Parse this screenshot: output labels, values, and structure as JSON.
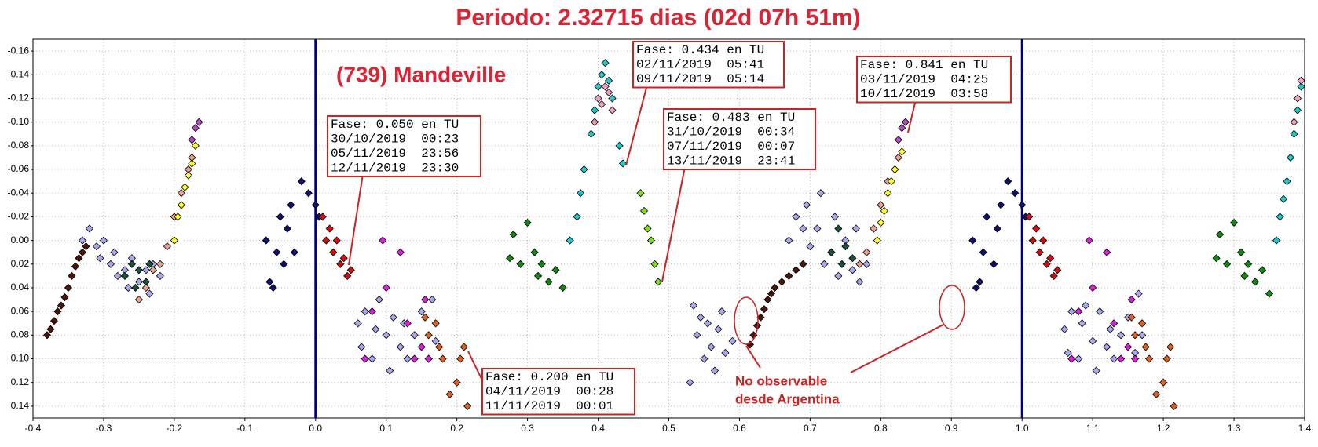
{
  "chart_data": {
    "type": "scatter",
    "title": "Periodo: 2.32715 dias (02d 07h 51m)",
    "label": "(739) Mandeville",
    "note": [
      "No observable",
      "desde Argentina"
    ],
    "xlim": [
      -0.4,
      1.4
    ],
    "ylim": [
      0.15,
      -0.17
    ],
    "xticks": [
      -0.4,
      -0.3,
      -0.2,
      -0.1,
      {
        "value": 0,
        "label": "0.0"
      },
      0.1,
      0.2,
      0.3,
      0.4,
      0.5,
      0.6,
      0.7,
      0.8,
      0.9,
      {
        "value": 1,
        "label": "1.0"
      },
      1.1,
      1.2,
      1.3,
      1.4
    ],
    "yticks": [
      -0.16,
      -0.14,
      -0.12,
      {
        "value": -0.1,
        "label": "-0.10"
      },
      -0.08,
      -0.06,
      -0.04,
      -0.02,
      {
        "value": 0,
        "label": "0.00"
      },
      0.02,
      0.04,
      0.06,
      0.08,
      {
        "value": 0.1,
        "label": "0.10"
      },
      0.12,
      0.14
    ],
    "grid": true,
    "vlines": [
      0,
      1
    ],
    "vline_color": "#000080",
    "annotations": [
      {
        "lines": [
          "Fase: 0.050 en TU",
          "30/10/2019  00:23",
          "05/11/2019  23:56",
          "12/11/2019  23:30"
        ]
      },
      {
        "lines": [
          "Fase: 0.434 en TU",
          "02/11/2019  05:41",
          "09/11/2019  05:14"
        ]
      },
      {
        "lines": [
          "Fase: 0.483 en TU",
          "31/10/2019  00:34",
          "07/11/2019  00:07",
          "13/11/2019  23:41"
        ]
      },
      {
        "lines": [
          "Fase: 0.841 en TU",
          "03/11/2019  04:25",
          "10/11/2019  03:58"
        ]
      },
      {
        "lines": [
          "Fase: 0.200 en TU",
          "04/11/2019  00:28",
          "11/11/2019  00:01"
        ]
      }
    ],
    "series": [
      {
        "color": "#4a1608",
        "x": [
          -0.38,
          -0.375,
          -0.37,
          -0.365,
          -0.36,
          -0.355,
          -0.35,
          -0.345,
          -0.34,
          -0.335,
          -0.33,
          -0.325,
          0.615,
          0.62,
          0.625,
          0.63,
          0.635,
          0.64,
          0.645,
          0.65,
          0.66,
          0.67,
          0.68,
          0.69
        ],
        "values": [
          0.08,
          0.075,
          0.068,
          0.06,
          0.055,
          0.048,
          0.04,
          0.03,
          0.022,
          0.015,
          0.01,
          0.005,
          0.088,
          0.08,
          0.072,
          0.065,
          0.058,
          0.05,
          0.045,
          0.04,
          0.035,
          0.03,
          0.025,
          0.02
        ]
      },
      {
        "color": "#a8a8ee",
        "x": [
          -0.33,
          -0.32,
          -0.31,
          -0.305,
          -0.3,
          -0.29,
          -0.285,
          -0.28,
          -0.27,
          -0.265,
          -0.26,
          -0.25,
          -0.24,
          -0.235,
          -0.23,
          -0.22,
          0.67,
          0.68,
          0.69,
          0.695,
          0.7,
          0.71,
          0.715,
          0.72,
          0.73,
          0.735,
          0.74,
          0.75,
          0.76,
          0.765,
          0.77,
          0.78,
          0.06,
          0.065,
          0.07,
          0.08,
          0.085,
          0.09,
          0.1,
          0.105,
          0.11,
          0.12,
          0.125,
          0.13,
          0.14,
          0.15,
          0.16,
          0.165,
          0.17,
          1.06,
          1.065,
          1.07,
          1.08,
          1.085,
          1.09,
          1.1,
          1.105,
          1.11,
          1.12,
          1.125,
          1.13,
          1.14,
          1.15,
          1.16,
          1.165,
          1.17,
          0.53,
          0.535,
          0.54,
          0.545,
          0.55,
          0.555,
          0.56,
          0.565,
          0.57,
          0.575,
          0.58,
          0.59
        ],
        "values": [
          0.0,
          -0.01,
          0.005,
          0.015,
          0.0,
          0.02,
          0.01,
          0.03,
          0.025,
          0.04,
          0.015,
          0.035,
          0.025,
          0.045,
          0.02,
          0.03,
          0.0,
          -0.02,
          -0.01,
          -0.03,
          0.005,
          -0.01,
          -0.04,
          0.02,
          0.01,
          -0.02,
          0.03,
          0.0,
          0.025,
          -0.01,
          0.035,
          0.02,
          0.07,
          0.09,
          0.06,
          0.1,
          0.075,
          0.05,
          0.08,
          0.11,
          0.065,
          0.09,
          0.07,
          0.1,
          0.08,
          0.06,
          0.1,
          0.05,
          0.085,
          0.075,
          0.095,
          0.06,
          0.1,
          0.07,
          0.055,
          0.085,
          0.11,
          0.06,
          0.09,
          0.075,
          0.1,
          0.08,
          0.065,
          0.095,
          0.045,
          0.08,
          0.12,
          0.055,
          0.08,
          0.065,
          0.1,
          0.07,
          0.09,
          0.11,
          0.075,
          0.06,
          0.095,
          0.085
        ]
      },
      {
        "color": "#1a5040",
        "x": [
          -0.27,
          -0.26,
          -0.255,
          -0.25,
          -0.24,
          -0.235,
          0.73,
          0.74,
          0.745,
          0.75,
          0.76
        ],
        "values": [
          0.03,
          0.02,
          0.04,
          0.025,
          0.035,
          0.02,
          0.01,
          -0.01,
          0.02,
          0.005,
          0.015
        ]
      },
      {
        "color": "#e8a090",
        "x": [
          -0.25,
          -0.24,
          -0.23,
          -0.22,
          -0.21,
          -0.2,
          -0.19,
          -0.18,
          -0.175,
          0.77,
          0.78,
          0.79,
          0.8,
          0.81,
          0.82,
          0.825
        ],
        "values": [
          0.05,
          0.04,
          0.025,
          0.02,
          0.005,
          -0.02,
          -0.04,
          -0.06,
          -0.07,
          0.02,
          0.01,
          -0.01,
          -0.03,
          -0.05,
          -0.06,
          -0.07
        ]
      },
      {
        "color": "#ffff30",
        "x": [
          -0.2,
          -0.195,
          -0.19,
          -0.185,
          -0.18,
          -0.175,
          -0.17,
          0.795,
          0.8,
          0.805,
          0.81,
          0.815,
          0.82,
          0.83
        ],
        "values": [
          0.0,
          -0.02,
          -0.03,
          -0.045,
          -0.055,
          -0.065,
          -0.08,
          0.0,
          -0.015,
          -0.025,
          -0.04,
          -0.05,
          -0.06,
          -0.075
        ]
      },
      {
        "color": "#b050c0",
        "x": [
          -0.175,
          -0.17,
          -0.165,
          0.825,
          0.83,
          0.835
        ],
        "values": [
          -0.085,
          -0.095,
          -0.1,
          -0.085,
          -0.095,
          -0.1
        ]
      },
      {
        "color": "#101070",
        "x": [
          -0.07,
          -0.065,
          -0.06,
          -0.055,
          -0.05,
          -0.045,
          -0.04,
          -0.035,
          -0.03,
          -0.02,
          -0.01,
          0.0,
          0.005,
          0.93,
          0.935,
          0.94,
          0.945,
          0.95,
          0.96,
          0.965,
          0.97,
          0.98,
          0.99,
          1.0,
          1.005
        ],
        "values": [
          0.0,
          0.035,
          0.04,
          0.01,
          -0.02,
          0.02,
          -0.01,
          -0.03,
          0.01,
          -0.05,
          -0.04,
          -0.03,
          -0.02,
          0.0,
          0.04,
          0.035,
          0.01,
          -0.02,
          0.02,
          -0.01,
          -0.03,
          -0.05,
          -0.04,
          -0.03,
          -0.02
        ]
      },
      {
        "color": "#cc1010",
        "x": [
          0.01,
          0.015,
          0.02,
          0.025,
          0.03,
          0.035,
          0.04,
          0.045,
          0.05,
          1.01,
          1.015,
          1.02,
          1.025,
          1.03,
          1.035,
          1.04,
          1.045,
          1.05
        ],
        "values": [
          -0.02,
          0.0,
          -0.01,
          0.01,
          0.0,
          0.02,
          0.015,
          0.03,
          0.025,
          -0.02,
          0.0,
          -0.01,
          0.01,
          0.0,
          0.02,
          0.015,
          0.03,
          0.025
        ]
      },
      {
        "color": "#dd20dd",
        "x": [
          0.07,
          0.08,
          0.095,
          0.1,
          0.12,
          0.13,
          0.14,
          0.15,
          0.155,
          0.16,
          1.07,
          1.08,
          1.095,
          1.1,
          1.12,
          1.13,
          1.14,
          1.15,
          1.155,
          1.16
        ],
        "values": [
          0.1,
          0.06,
          0.0,
          0.04,
          0.01,
          0.07,
          0.1,
          0.09,
          0.05,
          0.1,
          0.1,
          0.06,
          0.0,
          0.04,
          0.01,
          0.07,
          0.1,
          0.09,
          0.05,
          0.1
        ]
      },
      {
        "color": "#e06020",
        "x": [
          0.155,
          0.16,
          0.17,
          0.175,
          0.18,
          0.19,
          0.2,
          0.205,
          0.21,
          0.215,
          1.155,
          1.16,
          1.17,
          1.175,
          1.18,
          1.19,
          1.2,
          1.205,
          1.21,
          1.215
        ],
        "values": [
          0.065,
          0.08,
          0.07,
          0.09,
          0.1,
          0.13,
          0.12,
          0.1,
          0.09,
          0.14,
          0.065,
          0.08,
          0.07,
          0.09,
          0.1,
          0.13,
          0.12,
          0.1,
          0.09,
          0.14
        ]
      },
      {
        "color": "#118811",
        "x": [
          0.275,
          0.28,
          0.29,
          0.3,
          0.31,
          0.315,
          0.32,
          0.33,
          0.34,
          0.35,
          1.275,
          1.28,
          1.29,
          1.3,
          1.31,
          1.315,
          1.32,
          1.33,
          1.34,
          1.35
        ],
        "values": [
          0.015,
          -0.005,
          0.02,
          -0.015,
          0.01,
          0.03,
          0.02,
          0.035,
          0.025,
          0.04,
          0.015,
          -0.005,
          0.02,
          -0.015,
          0.01,
          0.03,
          0.02,
          0.035,
          0.025,
          0.045
        ]
      },
      {
        "color": "#20c8c8",
        "x": [
          0.36,
          0.37,
          0.375,
          0.38,
          0.39,
          0.395,
          0.4,
          0.405,
          0.41,
          0.415,
          0.42,
          0.43,
          0.435,
          1.36,
          1.365,
          1.37,
          1.375,
          1.38,
          1.385,
          1.39,
          1.395
        ],
        "values": [
          0.0,
          -0.02,
          -0.04,
          -0.06,
          -0.09,
          -0.11,
          -0.13,
          -0.14,
          -0.15,
          -0.135,
          -0.12,
          -0.08,
          -0.065,
          0.0,
          -0.02,
          -0.035,
          -0.05,
          -0.07,
          -0.09,
          -0.11,
          -0.13
        ]
      },
      {
        "color": "#f0a0c0",
        "x": [
          0.395,
          0.4,
          0.405,
          0.41,
          0.415,
          0.42,
          1.385,
          1.39,
          1.395
        ],
        "values": [
          -0.1,
          -0.12,
          -0.115,
          -0.13,
          -0.125,
          -0.11,
          -0.1,
          -0.12,
          -0.135
        ]
      },
      {
        "color": "#80dd20",
        "x": [
          0.46,
          0.465,
          0.47,
          0.475,
          0.48,
          0.485
        ],
        "values": [
          -0.04,
          -0.025,
          -0.01,
          0.0,
          0.02,
          0.035
        ]
      }
    ]
  }
}
